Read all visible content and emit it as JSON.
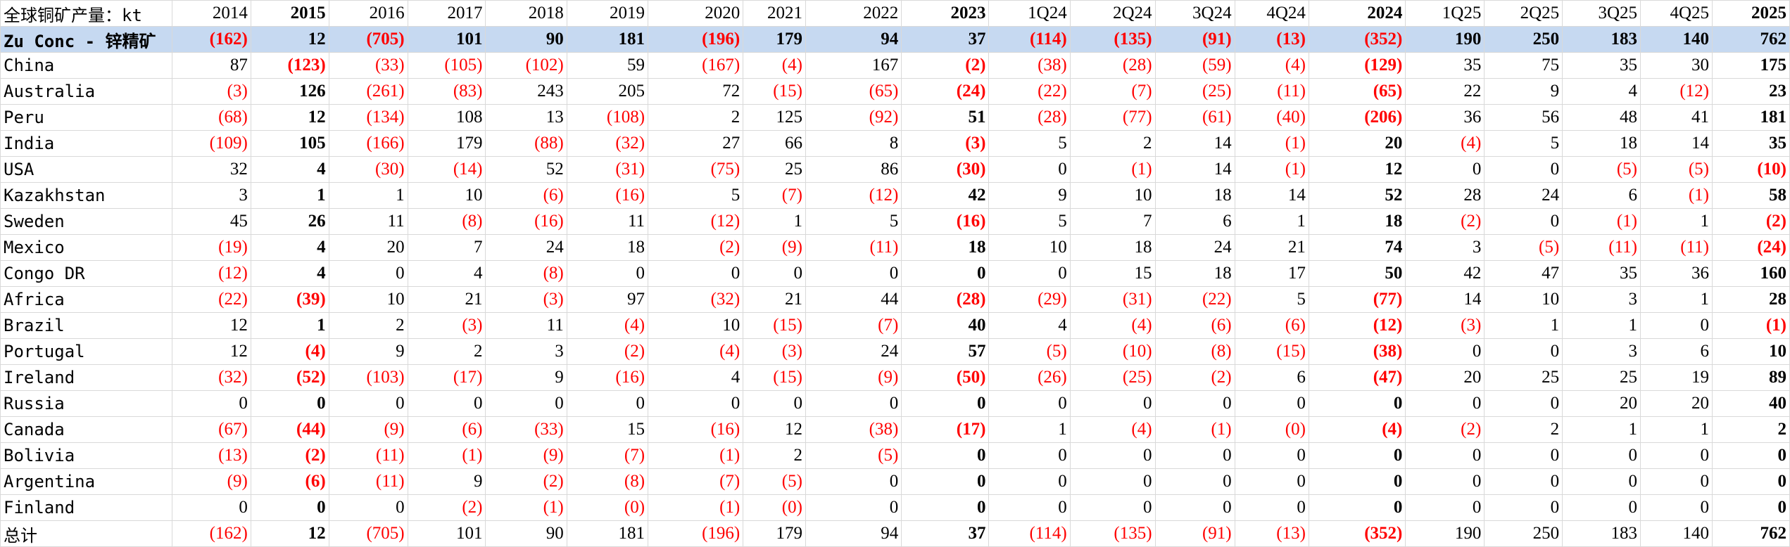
{
  "sheet": {
    "title": "全球铜矿产量：kt",
    "columns": [
      "2014",
      "2015",
      "2016",
      "2017",
      "2018",
      "2019",
      "2020",
      "2021",
      "2022",
      "2023",
      "1Q24",
      "2Q24",
      "3Q24",
      "4Q24",
      "2024",
      "1Q25",
      "2Q25",
      "3Q25",
      "4Q25",
      "2025"
    ],
    "bold_columns": [
      "2015",
      "2023",
      "2024",
      "2025"
    ],
    "colors": {
      "negative": "#ff0000",
      "highlight_row": "#c6d9f1",
      "grid": "#d9d9d9"
    },
    "rows": [
      {
        "label": "Zu Conc - 锌精矿",
        "highlight": true,
        "values": [
          "(162)",
          "12",
          "(705)",
          "101",
          "90",
          "181",
          "(196)",
          "179",
          "94",
          "37",
          "(114)",
          "(135)",
          "(91)",
          "(13)",
          "(352)",
          "190",
          "250",
          "183",
          "140",
          "762"
        ]
      },
      {
        "label": "China",
        "values": [
          "87",
          "(123)",
          "(33)",
          "(105)",
          "(102)",
          "59",
          "(167)",
          "(4)",
          "167",
          "(2)",
          "(38)",
          "(28)",
          "(59)",
          "(4)",
          "(129)",
          "35",
          "75",
          "35",
          "30",
          "175"
        ]
      },
      {
        "label": "Australia",
        "values": [
          "(3)",
          "126",
          "(261)",
          "(83)",
          "243",
          "205",
          "72",
          "(15)",
          "(65)",
          "(24)",
          "(22)",
          "(7)",
          "(25)",
          "(11)",
          "(65)",
          "22",
          "9",
          "4",
          "(12)",
          "23"
        ]
      },
      {
        "label": "Peru",
        "values": [
          "(68)",
          "12",
          "(134)",
          "108",
          "13",
          "(108)",
          "2",
          "125",
          "(92)",
          "51",
          "(28)",
          "(77)",
          "(61)",
          "(40)",
          "(206)",
          "36",
          "56",
          "48",
          "41",
          "181"
        ]
      },
      {
        "label": "India",
        "values": [
          "(109)",
          "105",
          "(166)",
          "179",
          "(88)",
          "(32)",
          "27",
          "66",
          "8",
          "(3)",
          "5",
          "2",
          "14",
          "(1)",
          "20",
          "(4)",
          "5",
          "18",
          "14",
          "35"
        ]
      },
      {
        "label": "USA",
        "values": [
          "32",
          "4",
          "(30)",
          "(14)",
          "52",
          "(31)",
          "(75)",
          "25",
          "86",
          "(30)",
          "0",
          "(1)",
          "14",
          "(1)",
          "12",
          "0",
          "0",
          "(5)",
          "(5)",
          "(10)"
        ]
      },
      {
        "label": "Kazakhstan",
        "values": [
          "3",
          "1",
          "1",
          "10",
          "(6)",
          "(16)",
          "5",
          "(7)",
          "(12)",
          "42",
          "9",
          "10",
          "18",
          "14",
          "52",
          "28",
          "24",
          "6",
          "(1)",
          "58"
        ]
      },
      {
        "label": "Sweden",
        "values": [
          "45",
          "26",
          "11",
          "(8)",
          "(16)",
          "11",
          "(12)",
          "1",
          "5",
          "(16)",
          "5",
          "7",
          "6",
          "1",
          "18",
          "(2)",
          "0",
          "(1)",
          "1",
          "(2)"
        ]
      },
      {
        "label": "Mexico",
        "values": [
          "(19)",
          "4",
          "20",
          "7",
          "24",
          "18",
          "(2)",
          "(9)",
          "(11)",
          "18",
          "10",
          "18",
          "24",
          "21",
          "74",
          "3",
          "(5)",
          "(11)",
          "(11)",
          "(24)"
        ]
      },
      {
        "label": "Congo DR",
        "values": [
          "(12)",
          "4",
          "0",
          "4",
          "(8)",
          "0",
          "0",
          "0",
          "0",
          "0",
          "0",
          "15",
          "18",
          "17",
          "50",
          "42",
          "47",
          "35",
          "36",
          "160"
        ]
      },
      {
        "label": "Africa",
        "values": [
          "(22)",
          "(39)",
          "10",
          "21",
          "(3)",
          "97",
          "(32)",
          "21",
          "44",
          "(28)",
          "(29)",
          "(31)",
          "(22)",
          "5",
          "(77)",
          "14",
          "10",
          "3",
          "1",
          "28"
        ]
      },
      {
        "label": "Brazil",
        "values": [
          "12",
          "1",
          "2",
          "(3)",
          "11",
          "(4)",
          "10",
          "(15)",
          "(7)",
          "40",
          "4",
          "(4)",
          "(6)",
          "(6)",
          "(12)",
          "(3)",
          "1",
          "1",
          "0",
          "(1)"
        ]
      },
      {
        "label": "Portugal",
        "values": [
          "12",
          "(4)",
          "9",
          "2",
          "3",
          "(2)",
          "(4)",
          "(3)",
          "24",
          "57",
          "(5)",
          "(10)",
          "(8)",
          "(15)",
          "(38)",
          "0",
          "0",
          "3",
          "6",
          "10"
        ]
      },
      {
        "label": "Ireland",
        "values": [
          "(32)",
          "(52)",
          "(103)",
          "(17)",
          "9",
          "(16)",
          "4",
          "(15)",
          "(9)",
          "(50)",
          "(26)",
          "(25)",
          "(2)",
          "6",
          "(47)",
          "20",
          "25",
          "25",
          "19",
          "89"
        ]
      },
      {
        "label": "Russia",
        "values": [
          "0",
          "0",
          "0",
          "0",
          "0",
          "0",
          "0",
          "0",
          "0",
          "0",
          "0",
          "0",
          "0",
          "0",
          "0",
          "0",
          "0",
          "20",
          "20",
          "40"
        ]
      },
      {
        "label": "Canada",
        "values": [
          "(67)",
          "(44)",
          "(9)",
          "(6)",
          "(33)",
          "15",
          "(16)",
          "12",
          "(38)",
          "(17)",
          "1",
          "(4)",
          "(1)",
          "(0)",
          "(4)",
          "(2)",
          "2",
          "1",
          "1",
          "2"
        ]
      },
      {
        "label": "Bolivia",
        "values": [
          "(13)",
          "(2)",
          "(11)",
          "(1)",
          "(9)",
          "(7)",
          "(1)",
          "2",
          "(5)",
          "0",
          "0",
          "0",
          "0",
          "0",
          "0",
          "0",
          "0",
          "0",
          "0",
          "0"
        ]
      },
      {
        "label": "Argentina",
        "values": [
          "(9)",
          "(6)",
          "(11)",
          "9",
          "(2)",
          "(8)",
          "(7)",
          "(5)",
          "0",
          "0",
          "0",
          "0",
          "0",
          "0",
          "0",
          "0",
          "0",
          "0",
          "0",
          "0"
        ]
      },
      {
        "label": "Finland",
        "values": [
          "0",
          "0",
          "0",
          "(2)",
          "(1)",
          "(0)",
          "(1)",
          "(0)",
          "0",
          "0",
          "0",
          "0",
          "0",
          "0",
          "0",
          "0",
          "0",
          "0",
          "0",
          "0"
        ]
      },
      {
        "label": "总计",
        "values": [
          "(162)",
          "12",
          "(705)",
          "101",
          "90",
          "181",
          "(196)",
          "179",
          "94",
          "37",
          "(114)",
          "(135)",
          "(91)",
          "(13)",
          "(352)",
          "190",
          "250",
          "183",
          "140",
          "762"
        ]
      }
    ]
  }
}
